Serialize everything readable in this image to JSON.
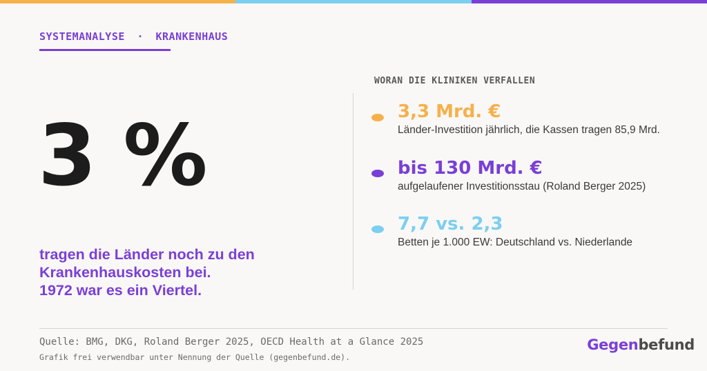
{
  "colors": {
    "orange": "#f6b04a",
    "blue": "#7ccff0",
    "purple": "#7a3fd6",
    "dark": "#1c1c1c",
    "brand_gray": "#4a4a4a"
  },
  "kicker": {
    "left": "SYSTEMANALYSE",
    "separator": "·",
    "right": "KRANKENHAUS"
  },
  "hero": {
    "number": "3 %",
    "lead_lines": [
      "tragen die Länder noch zu den",
      "Krankenhauskosten bei.",
      "1972 war es ein Viertel."
    ]
  },
  "section": {
    "title": "WORAN DIE KLINIKEN VERFALLEN"
  },
  "stats": [
    {
      "value": "3,3 Mrd. €",
      "desc": "Länder-Investition jährlich, die Kassen tragen 85,9 Mrd.",
      "color": "#f6b04a"
    },
    {
      "value": "bis 130 Mrd. €",
      "desc": "aufgelaufener Investitionsstau (Roland Berger 2025)",
      "color": "#7a3fd6"
    },
    {
      "value": "7,7 vs. 2,3",
      "desc": "Betten je 1.000 EW: Deutschland vs. Niederlande",
      "color": "#7ccff0"
    }
  ],
  "footer": {
    "source": "Quelle: BMG, DKG, Roland Berger 2025, OECD Health at a Glance 2025",
    "license": "Grafik frei verwendbar unter Nennung der Quelle (gegenbefund.de).",
    "brand_part1": "Gegen",
    "brand_part2": "befund"
  }
}
